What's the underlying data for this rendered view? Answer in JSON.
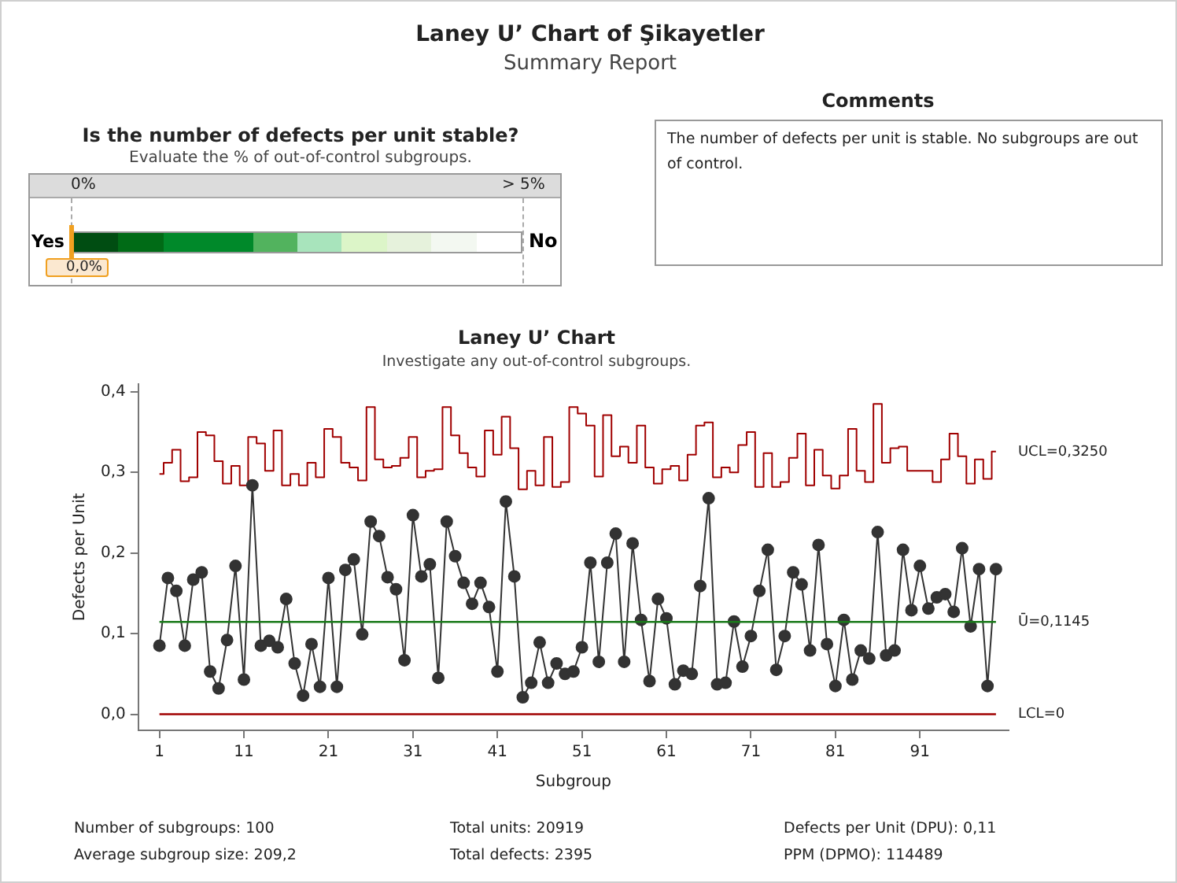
{
  "chart_data": [
    {
      "type": "other",
      "title": "Laney U’ Chart of Şikayetler",
      "subtitle": "Summary Report"
    },
    {
      "type": "other",
      "title": "Is the number of defects per unit stable?",
      "subtitle": "Evaluate the % of out-of-control subgroups.",
      "annotations": [
        "0%",
        "> 5%",
        "Yes",
        "No",
        "0,0%"
      ]
    },
    {
      "type": "other",
      "title": "Comments",
      "annotations": [
        "The number of defects per unit is stable. No subgroups are out of control."
      ]
    },
    {
      "type": "line",
      "title": "Laney U’ Chart",
      "subtitle": "Investigate any out-of-control subgroups.",
      "xlabel": "Subgroup",
      "ylabel": "Defects per Unit",
      "x": [
        1,
        2,
        3,
        4,
        5,
        6,
        7,
        8,
        9,
        10,
        11,
        12,
        13,
        14,
        15,
        16,
        17,
        18,
        19,
        20,
        21,
        22,
        23,
        24,
        25,
        26,
        27,
        28,
        29,
        30,
        31,
        32,
        33,
        34,
        35,
        36,
        37,
        38,
        39,
        40,
        41,
        42,
        43,
        44,
        45,
        46,
        47,
        48,
        49,
        50,
        51,
        52,
        53,
        54,
        55,
        56,
        57,
        58,
        59,
        60,
        61,
        62,
        63,
        64,
        65,
        66,
        67,
        68,
        69,
        70,
        71,
        72,
        73,
        74,
        75,
        76,
        77,
        78,
        79,
        80,
        81,
        82,
        83,
        84,
        85,
        86,
        87,
        88,
        89,
        90,
        91,
        92,
        93,
        94,
        95,
        96,
        97,
        98,
        99,
        100
      ],
      "series": [
        {
          "type": "line",
          "color": "#333333",
          "marker": "circle",
          "values": [
            0.085,
            0.169,
            0.153,
            0.085,
            0.167,
            0.176,
            0.053,
            0.032,
            0.092,
            0.184,
            0.043,
            0.284,
            0.085,
            0.091,
            0.083,
            0.143,
            0.063,
            0.023,
            0.087,
            0.034,
            0.169,
            0.034,
            0.179,
            0.192,
            0.099,
            0.239,
            0.221,
            0.17,
            0.155,
            0.067,
            0.247,
            0.171,
            0.186,
            0.045,
            0.239,
            0.196,
            0.163,
            0.137,
            0.163,
            0.133,
            0.053,
            0.264,
            0.171,
            0.021,
            0.039,
            0.089,
            0.039,
            0.063,
            0.05,
            0.053,
            0.083,
            0.188,
            0.065,
            0.188,
            0.224,
            0.065,
            0.212,
            0.117,
            0.041,
            0.143,
            0.119,
            0.037,
            0.054,
            0.05,
            0.159,
            0.268,
            0.037,
            0.039,
            0.115,
            0.059,
            0.097,
            0.153,
            0.204,
            0.055,
            0.097,
            0.176,
            0.161,
            0.079,
            0.21,
            0.087,
            0.035,
            0.117,
            0.043,
            0.079,
            0.069,
            0.226,
            0.073,
            0.079,
            0.204,
            0.129,
            0.184,
            0.131,
            0.145,
            0.149,
            0.127,
            0.206,
            0.109,
            0.18,
            0.035,
            0.18
          ]
        },
        {
          "type": "step",
          "color": "#a00000",
          "marker": "none",
          "values": [
            0.298,
            0.312,
            0.328,
            0.289,
            0.294,
            0.35,
            0.346,
            0.314,
            0.286,
            0.308,
            0.284,
            0.344,
            0.336,
            0.302,
            0.352,
            0.284,
            0.298,
            0.284,
            0.312,
            0.294,
            0.354,
            0.344,
            0.312,
            0.306,
            0.29,
            0.381,
            0.316,
            0.306,
            0.308,
            0.318,
            0.344,
            0.294,
            0.302,
            0.304,
            0.381,
            0.346,
            0.324,
            0.306,
            0.295,
            0.352,
            0.322,
            0.369,
            0.33,
            0.279,
            0.302,
            0.284,
            0.344,
            0.282,
            0.288,
            0.381,
            0.373,
            0.358,
            0.295,
            0.371,
            0.32,
            0.332,
            0.312,
            0.358,
            0.306,
            0.286,
            0.304,
            0.308,
            0.29,
            0.322,
            0.358,
            0.362,
            0.294,
            0.306,
            0.3,
            0.334,
            0.35,
            0.282,
            0.324,
            0.282,
            0.288,
            0.318,
            0.348,
            0.284,
            0.328,
            0.296,
            0.28,
            0.296,
            0.354,
            0.302,
            0.288,
            0.385,
            0.312,
            0.33,
            0.332,
            0.302,
            0.302,
            0.302,
            0.288,
            0.316,
            0.348,
            0.32,
            0.286,
            0.316,
            0.292,
            0.326
          ]
        }
      ],
      "xlim": [
        -1.5,
        101.5
      ],
      "xticks": [
        1,
        11,
        21,
        31,
        41,
        51,
        61,
        71,
        81,
        91
      ],
      "ylim": [
        -0.02,
        0.41
      ],
      "yticks": [
        {
          "value": 0,
          "label": "0,0"
        },
        {
          "value": 0.1,
          "label": "0,1"
        },
        {
          "value": 0.2,
          "label": "0,2"
        },
        {
          "value": 0.3,
          "label": "0,3"
        },
        {
          "value": 0.4,
          "label": "0,4"
        }
      ],
      "ref_lines": [
        {
          "axis": "y",
          "value": 0.1145,
          "label": "Ū=0,1145",
          "color": "#1a7a1a"
        },
        {
          "axis": "y",
          "value": 0,
          "label": "LCL=0",
          "color": "#a00000"
        }
      ],
      "annotations": [
        {
          "text": "UCL=0,3250",
          "x": 100,
          "y": 0.325
        }
      ],
      "grid": false,
      "legend": false
    },
    {
      "type": "other",
      "annotations": [
        "Number of subgroups: 100",
        "Average subgroup size: 209,2",
        "Total units: 20919",
        "Total defects: 2395",
        "Defects per Unit (DPU):  0,11",
        "PPM (DPMO): 114489"
      ]
    }
  ]
}
